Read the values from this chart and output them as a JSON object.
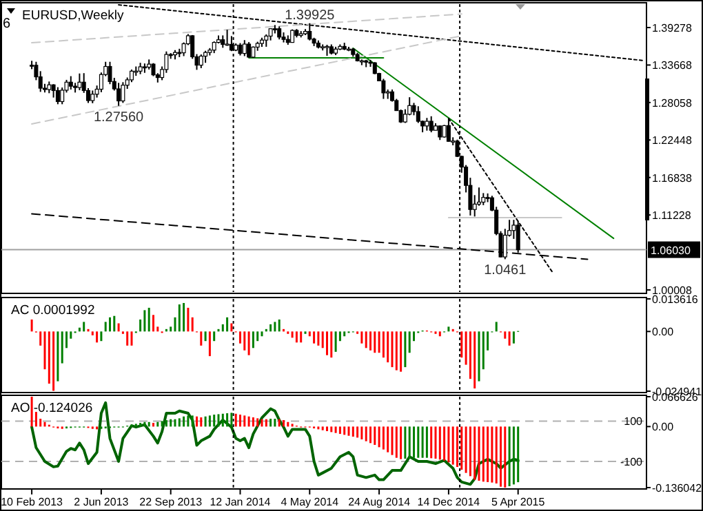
{
  "chart_data": [
    {
      "type": "candlestick",
      "title": "EURUSD,Weekly",
      "annotations": [
        "6",
        {
          "text": "1.39925",
          "x": "2014-05-04",
          "y": 1.39925
        },
        {
          "text": "1.27560",
          "x": "2013-06-30",
          "y": 1.2756
        },
        {
          "text": "1.0461",
          "x": "2015-03-15",
          "y": 1.0461
        }
      ],
      "color": "#000000",
      "tick_labels": "y",
      "xlim": [
        "2012-12-23",
        "2015-10-29"
      ],
      "ylim": [
        0.997,
        1.4278
      ],
      "yticks": [
        1.39278,
        1.33668,
        1.28058,
        1.22448,
        1.16838,
        1.11228,
        1.00008
      ],
      "x": [
        "2013-02-10",
        "2013-02-17",
        "2013-02-24",
        "2013-03-03",
        "2013-03-10",
        "2013-03-17",
        "2013-03-24",
        "2013-03-31",
        "2013-04-07",
        "2013-04-14",
        "2013-04-21",
        "2013-04-28",
        "2013-05-05",
        "2013-05-12",
        "2013-05-19",
        "2013-05-26",
        "2013-06-02",
        "2013-06-09",
        "2013-06-16",
        "2013-06-23",
        "2013-06-30",
        "2013-07-07",
        "2013-07-14",
        "2013-07-21",
        "2013-07-28",
        "2013-08-04",
        "2013-08-11",
        "2013-08-18",
        "2013-08-25",
        "2013-09-01",
        "2013-09-08",
        "2013-09-15",
        "2013-09-22",
        "2013-09-29",
        "2013-10-06",
        "2013-10-13",
        "2013-10-20",
        "2013-10-27",
        "2013-11-03",
        "2013-11-10",
        "2013-11-17",
        "2013-11-24",
        "2013-12-01",
        "2013-12-08",
        "2013-12-15",
        "2013-12-22",
        "2013-12-29",
        "2014-01-05",
        "2014-01-12",
        "2014-01-19",
        "2014-01-26",
        "2014-02-02",
        "2014-02-09",
        "2014-02-16",
        "2014-02-23",
        "2014-03-02",
        "2014-03-09",
        "2014-03-16",
        "2014-03-23",
        "2014-03-30",
        "2014-04-06",
        "2014-04-13",
        "2014-04-20",
        "2014-04-27",
        "2014-05-04",
        "2014-05-11",
        "2014-05-18",
        "2014-05-25",
        "2014-06-01",
        "2014-06-08",
        "2014-06-15",
        "2014-06-22",
        "2014-06-29",
        "2014-07-06",
        "2014-07-13",
        "2014-07-20",
        "2014-07-27",
        "2014-08-03",
        "2014-08-10",
        "2014-08-17",
        "2014-08-24",
        "2014-08-31",
        "2014-09-07",
        "2014-09-14",
        "2014-09-21",
        "2014-09-28",
        "2014-10-05",
        "2014-10-12",
        "2014-10-19",
        "2014-10-26",
        "2014-11-02",
        "2014-11-09",
        "2014-11-16",
        "2014-11-23",
        "2014-11-30",
        "2014-12-07",
        "2014-12-14",
        "2014-12-21",
        "2014-12-28",
        "2015-01-04",
        "2015-01-11",
        "2015-01-18",
        "2015-01-25",
        "2015-02-01",
        "2015-02-08",
        "2015-02-15",
        "2015-02-22",
        "2015-03-01",
        "2015-03-08",
        "2015-03-15",
        "2015-03-22",
        "2015-03-29",
        "2015-04-05"
      ],
      "ohlc": [
        [
          1.3365,
          1.343,
          1.3305,
          1.3363
        ],
        [
          1.3363,
          1.3415,
          1.314,
          1.319
        ],
        [
          1.319,
          1.3275,
          1.2965,
          1.302
        ],
        [
          1.302,
          1.3085,
          1.2955,
          1.3
        ],
        [
          1.3,
          1.312,
          1.2945,
          1.307
        ],
        [
          1.307,
          1.308,
          1.288,
          1.2985
        ],
        [
          1.2985,
          1.3035,
          1.278,
          1.282
        ],
        [
          1.282,
          1.303,
          1.278,
          1.299
        ],
        [
          1.299,
          1.3145,
          1.2955,
          1.311
        ],
        [
          1.311,
          1.32,
          1.3,
          1.305
        ],
        [
          1.305,
          1.31,
          1.2955,
          1.303
        ],
        [
          1.303,
          1.324,
          1.299,
          1.311
        ],
        [
          1.311,
          1.3245,
          1.295,
          1.2985
        ],
        [
          1.2985,
          1.302,
          1.28,
          1.2835
        ],
        [
          1.2835,
          1.2985,
          1.2795,
          1.293
        ],
        [
          1.293,
          1.306,
          1.288,
          1.3005
        ],
        [
          1.3005,
          1.3255,
          1.296,
          1.3225
        ],
        [
          1.3225,
          1.3415,
          1.32,
          1.3345
        ],
        [
          1.3345,
          1.3415,
          1.308,
          1.312
        ],
        [
          1.312,
          1.3175,
          1.2985,
          1.301
        ],
        [
          1.301,
          1.31,
          1.2756,
          1.283
        ],
        [
          1.283,
          1.311,
          1.28,
          1.3065
        ],
        [
          1.3065,
          1.318,
          1.301,
          1.3145
        ],
        [
          1.3145,
          1.33,
          1.311,
          1.3275
        ],
        [
          1.3275,
          1.3345,
          1.3205,
          1.3275
        ],
        [
          1.3275,
          1.34,
          1.323,
          1.334
        ],
        [
          1.334,
          1.339,
          1.325,
          1.3335
        ],
        [
          1.3335,
          1.345,
          1.33,
          1.338
        ],
        [
          1.338,
          1.3395,
          1.32,
          1.322
        ],
        [
          1.322,
          1.3245,
          1.3105,
          1.318
        ],
        [
          1.318,
          1.3345,
          1.314,
          1.33
        ],
        [
          1.33,
          1.357,
          1.325,
          1.3525
        ],
        [
          1.3525,
          1.3545,
          1.346,
          1.352
        ],
        [
          1.352,
          1.359,
          1.345,
          1.3555
        ],
        [
          1.3555,
          1.361,
          1.3485,
          1.355
        ],
        [
          1.355,
          1.3705,
          1.35,
          1.3685
        ],
        [
          1.3685,
          1.383,
          1.3665,
          1.3805
        ],
        [
          1.3805,
          1.3815,
          1.346,
          1.349
        ],
        [
          1.349,
          1.353,
          1.3295,
          1.3365
        ],
        [
          1.3365,
          1.3525,
          1.332,
          1.35
        ],
        [
          1.35,
          1.358,
          1.34,
          1.3555
        ],
        [
          1.3555,
          1.362,
          1.351,
          1.359
        ],
        [
          1.359,
          1.372,
          1.3545,
          1.3705
        ],
        [
          1.3705,
          1.381,
          1.369,
          1.3745
        ],
        [
          1.3745,
          1.381,
          1.3625,
          1.3675
        ],
        [
          1.3675,
          1.3895,
          1.3655,
          1.368
        ],
        [
          1.3675,
          1.38,
          1.3575,
          1.359
        ],
        [
          1.359,
          1.369,
          1.3575,
          1.3665
        ],
        [
          1.3665,
          1.3695,
          1.351,
          1.354
        ],
        [
          1.354,
          1.374,
          1.35,
          1.368
        ],
        [
          1.368,
          1.371,
          1.3475,
          1.3485
        ],
        [
          1.3485,
          1.3645,
          1.3475,
          1.3635
        ],
        [
          1.3635,
          1.3715,
          1.358,
          1.369
        ],
        [
          1.369,
          1.3775,
          1.364,
          1.374
        ],
        [
          1.374,
          1.3825,
          1.364,
          1.38
        ],
        [
          1.38,
          1.3915,
          1.3735,
          1.391
        ],
        [
          1.391,
          1.3965,
          1.384,
          1.3905
        ],
        [
          1.391,
          1.3945,
          1.375,
          1.3785
        ],
        [
          1.3785,
          1.3855,
          1.3705,
          1.375
        ],
        [
          1.375,
          1.381,
          1.367,
          1.3705
        ],
        [
          1.3705,
          1.39,
          1.37,
          1.3885
        ],
        [
          1.3885,
          1.3905,
          1.378,
          1.381
        ],
        [
          1.381,
          1.3875,
          1.378,
          1.3835
        ],
        [
          1.3835,
          1.3905,
          1.3815,
          1.387
        ],
        [
          1.387,
          1.39925,
          1.3735,
          1.3755
        ],
        [
          1.3755,
          1.3775,
          1.365,
          1.3695
        ],
        [
          1.3695,
          1.3735,
          1.3615,
          1.3635
        ],
        [
          1.3635,
          1.3675,
          1.3585,
          1.364
        ],
        [
          1.364,
          1.367,
          1.3505,
          1.3645
        ],
        [
          1.364,
          1.3675,
          1.3525,
          1.3545
        ],
        [
          1.3545,
          1.364,
          1.3515,
          1.3605
        ],
        [
          1.3605,
          1.3675,
          1.359,
          1.3645
        ],
        [
          1.3645,
          1.37,
          1.359,
          1.3605
        ],
        [
          1.3605,
          1.364,
          1.3575,
          1.3605
        ],
        [
          1.3605,
          1.362,
          1.349,
          1.3525
        ],
        [
          1.3525,
          1.355,
          1.342,
          1.343
        ],
        [
          1.343,
          1.345,
          1.3365,
          1.343
        ],
        [
          1.343,
          1.3445,
          1.3335,
          1.341
        ],
        [
          1.341,
          1.3445,
          1.334,
          1.34
        ],
        [
          1.34,
          1.341,
          1.323,
          1.324
        ],
        [
          1.324,
          1.325,
          1.313,
          1.313
        ],
        [
          1.313,
          1.316,
          1.286,
          1.295
        ],
        [
          1.295,
          1.3,
          1.286,
          1.2965
        ],
        [
          1.2965,
          1.3,
          1.282,
          1.2835
        ],
        [
          1.2835,
          1.286,
          1.268,
          1.2685
        ],
        [
          1.2685,
          1.27,
          1.25,
          1.2515
        ],
        [
          1.2515,
          1.2705,
          1.25,
          1.263
        ],
        [
          1.263,
          1.2885,
          1.2615,
          1.276
        ],
        [
          1.276,
          1.28,
          1.2615,
          1.267
        ],
        [
          1.267,
          1.275,
          1.25,
          1.2525
        ],
        [
          1.2525,
          1.2535,
          1.236,
          1.2455
        ],
        [
          1.2455,
          1.2575,
          1.2385,
          1.2525
        ],
        [
          1.2525,
          1.26,
          1.236,
          1.239
        ],
        [
          1.239,
          1.2495,
          1.239,
          1.2455
        ],
        [
          1.2455,
          1.246,
          1.2245,
          1.229
        ],
        [
          1.229,
          1.247,
          1.228,
          1.246
        ],
        [
          1.246,
          1.257,
          1.222,
          1.2225
        ],
        [
          1.2225,
          1.2285,
          1.2165,
          1.223
        ],
        [
          1.223,
          1.225,
          1.199,
          1.2
        ],
        [
          1.2,
          1.201,
          1.1755,
          1.184
        ],
        [
          1.184,
          1.187,
          1.146,
          1.1565
        ],
        [
          1.1565,
          1.168,
          1.1115,
          1.1205
        ],
        [
          1.1205,
          1.142,
          1.11,
          1.1285
        ],
        [
          1.1285,
          1.1535,
          1.126,
          1.1315
        ],
        [
          1.1315,
          1.145,
          1.127,
          1.1385
        ],
        [
          1.1385,
          1.1445,
          1.1315,
          1.138
        ],
        [
          1.138,
          1.141,
          1.118,
          1.1195
        ],
        [
          1.1195,
          1.1245,
          1.082,
          1.0845
        ],
        [
          1.0845,
          1.088,
          1.049,
          1.0495
        ],
        [
          1.0495,
          1.0915,
          1.0461,
          1.082
        ],
        [
          1.082,
          1.105,
          1.08,
          1.089
        ],
        [
          1.089,
          1.105,
          1.0765,
          1.097
        ],
        [
          1.097,
          1.1035,
          1.056,
          1.0603
        ]
      ],
      "series": [
        {
          "type": "line",
          "color": "#000000",
          "line_style": "dashed",
          "x": [
            "2013-02-10",
            "2015-07-26"
          ],
          "values": [
            1.114,
            1.046
          ]
        },
        {
          "type": "line",
          "color": "#000000",
          "line_style": "dotted",
          "x": [
            "2013-06-30",
            "2015-10-25"
          ],
          "values": [
            1.4268,
            1.3433
          ]
        },
        {
          "type": "line",
          "color": "#008000",
          "x": [
            "2014-07-13",
            "2015-09-06"
          ],
          "values": [
            1.3619,
            1.0773
          ]
        },
        {
          "type": "line",
          "color": "#008000",
          "x": [
            "2014-01-26",
            "2014-08-31"
          ],
          "values": [
            1.3474,
            1.3474
          ]
        },
        {
          "type": "line",
          "color": "#000000",
          "line_style": "dotted",
          "x": [
            "2014-12-14",
            "2015-05-31"
          ],
          "values": [
            1.2567,
            1.0258
          ]
        },
        {
          "type": "line",
          "color": "#c8c8c8",
          "line_style": "dashed",
          "x": [
            "2013-02-10",
            "2015-01-04"
          ],
          "values": [
            1.37,
            1.413
          ]
        },
        {
          "type": "line",
          "color": "#c8c8c8",
          "line_style": "dashed",
          "x": [
            "2013-02-10",
            "2015-01-04"
          ],
          "values": [
            1.2485,
            1.3804
          ]
        },
        {
          "type": "line",
          "color": "#c8c8c8",
          "x": [
            "2014-12-14",
            "2015-06-14"
          ],
          "values": [
            1.1083,
            1.1083
          ]
        }
      ],
      "ref_lines": [
        {
          "axis": "y",
          "value": 1.0603,
          "label": "1.06030",
          "color": "#a0a0a0"
        },
        {
          "axis": "x",
          "value": "2014-01-01",
          "line_style": "dotted",
          "color": "#000000"
        },
        {
          "axis": "x",
          "value": "2015-01-01",
          "line_style": "dotted",
          "color": "#000000"
        }
      ]
    },
    {
      "type": "bar",
      "title": "AC 0.0001992",
      "tick_labels": "y",
      "xlim": [
        "2012-12-23",
        "2015-10-29"
      ],
      "ylim": [
        -0.024941,
        0.013616
      ],
      "yticks": [
        0.013616,
        {
          "value": 0,
          "label": "0.00"
        },
        -0.024941
      ],
      "x": [
        "2013-02-10",
        "2013-02-17",
        "2013-02-24",
        "2013-03-03",
        "2013-03-10",
        "2013-03-17",
        "2013-03-24",
        "2013-03-31",
        "2013-04-07",
        "2013-04-14",
        "2013-04-21",
        "2013-04-28",
        "2013-05-05",
        "2013-05-12",
        "2013-05-19",
        "2013-05-26",
        "2013-06-02",
        "2013-06-09",
        "2013-06-16",
        "2013-06-23",
        "2013-06-30",
        "2013-07-07",
        "2013-07-14",
        "2013-07-21",
        "2013-07-28",
        "2013-08-04",
        "2013-08-11",
        "2013-08-18",
        "2013-08-25",
        "2013-09-01",
        "2013-09-08",
        "2013-09-15",
        "2013-09-22",
        "2013-09-29",
        "2013-10-06",
        "2013-10-13",
        "2013-10-20",
        "2013-10-27",
        "2013-11-03",
        "2013-11-10",
        "2013-11-17",
        "2013-11-24",
        "2013-12-01",
        "2013-12-08",
        "2013-12-15",
        "2013-12-22",
        "2013-12-29",
        "2014-01-05",
        "2014-01-12",
        "2014-01-19",
        "2014-01-26",
        "2014-02-02",
        "2014-02-09",
        "2014-02-16",
        "2014-02-23",
        "2014-03-02",
        "2014-03-09",
        "2014-03-16",
        "2014-03-23",
        "2014-03-30",
        "2014-04-06",
        "2014-04-13",
        "2014-04-20",
        "2014-04-27",
        "2014-05-04",
        "2014-05-11",
        "2014-05-18",
        "2014-05-25",
        "2014-06-01",
        "2014-06-08",
        "2014-06-15",
        "2014-06-22",
        "2014-06-29",
        "2014-07-06",
        "2014-07-13",
        "2014-07-20",
        "2014-07-27",
        "2014-08-03",
        "2014-08-10",
        "2014-08-17",
        "2014-08-24",
        "2014-08-31",
        "2014-09-07",
        "2014-09-14",
        "2014-09-21",
        "2014-09-28",
        "2014-10-05",
        "2014-10-12",
        "2014-10-19",
        "2014-10-26",
        "2014-11-02",
        "2014-11-09",
        "2014-11-16",
        "2014-11-23",
        "2014-11-30",
        "2014-12-07",
        "2014-12-14",
        "2014-12-21",
        "2014-12-28",
        "2015-01-04",
        "2015-01-11",
        "2015-01-18",
        "2015-01-25",
        "2015-02-01",
        "2015-02-08",
        "2015-02-15",
        "2015-02-22",
        "2015-03-01",
        "2015-03-08",
        "2015-03-15",
        "2015-03-22",
        "2015-03-29",
        "2015-04-05"
      ],
      "values": [
        0.005,
        -0.0004,
        -0.0059,
        -0.0158,
        -0.0218,
        -0.0248,
        -0.0208,
        -0.0133,
        -0.0069,
        -0.003,
        -0.0006,
        0.0016,
        0.004,
        0.001,
        -0.0016,
        -0.0046,
        -0.004,
        0.004,
        0.0059,
        0.0065,
        0.0034,
        -0.001,
        -0.0059,
        -0.0059,
        -0.0006,
        0.005,
        0.0089,
        0.0099,
        0.0069,
        0.002,
        -0.0006,
        0.001,
        0.002,
        0.0059,
        0.0113,
        0.0119,
        0.0099,
        0.0059,
        0.0,
        -0.0059,
        -0.004,
        -0.0103,
        -0.004,
        0.001,
        0.003,
        0.0059,
        0.0034,
        0.0,
        -0.005,
        -0.0079,
        -0.0099,
        -0.0069,
        -0.004,
        -0.002,
        0.001,
        0.003,
        0.004,
        0.005,
        0.001,
        -0.001,
        -0.0026,
        -0.0046,
        -0.0046,
        -0.001,
        -0.002,
        -0.005,
        -0.0059,
        -0.0069,
        -0.0099,
        -0.0109,
        -0.0085,
        -0.004,
        -0.002,
        -0.0006,
        0.0,
        -0.001,
        -0.005,
        -0.0069,
        -0.0079,
        -0.0089,
        -0.0089,
        -0.0109,
        -0.0129,
        -0.0149,
        -0.0162,
        -0.0168,
        -0.0149,
        -0.0089,
        -0.004,
        -0.0006,
        0.0004,
        0.0004,
        0.0,
        -0.001,
        -0.002,
        0.0,
        0.002,
        0.001,
        0.0,
        -0.0109,
        -0.0139,
        -0.0198,
        -0.0238,
        -0.0208,
        -0.0158,
        -0.0079,
        0.0,
        0.004,
        0.0,
        -0.003,
        -0.0059,
        -0.005,
        0.0002
      ],
      "colors": [
        "#ff0000",
        "#ff0000",
        "#ff0000",
        "#ff0000",
        "#ff0000",
        "#ff0000",
        "#008000",
        "#008000",
        "#008000",
        "#008000",
        "#008000",
        "#008000",
        "#008000",
        "#ff0000",
        "#ff0000",
        "#ff0000",
        "#008000",
        "#008000",
        "#008000",
        "#008000",
        "#ff0000",
        "#ff0000",
        "#ff0000",
        "#ff0000",
        "#008000",
        "#008000",
        "#008000",
        "#008000",
        "#ff0000",
        "#ff0000",
        "#ff0000",
        "#008000",
        "#008000",
        "#008000",
        "#008000",
        "#008000",
        "#ff0000",
        "#ff0000",
        "#ff0000",
        "#ff0000",
        "#008000",
        "#ff0000",
        "#008000",
        "#008000",
        "#008000",
        "#008000",
        "#ff0000",
        "#ff0000",
        "#ff0000",
        "#ff0000",
        "#ff0000",
        "#008000",
        "#008000",
        "#008000",
        "#008000",
        "#008000",
        "#008000",
        "#008000",
        "#ff0000",
        "#ff0000",
        "#ff0000",
        "#ff0000",
        "#ff0000",
        "#008000",
        "#ff0000",
        "#ff0000",
        "#ff0000",
        "#ff0000",
        "#ff0000",
        "#ff0000",
        "#008000",
        "#008000",
        "#008000",
        "#008000",
        "#008000",
        "#ff0000",
        "#ff0000",
        "#ff0000",
        "#ff0000",
        "#ff0000",
        "#ff0000",
        "#ff0000",
        "#ff0000",
        "#ff0000",
        "#ff0000",
        "#ff0000",
        "#008000",
        "#008000",
        "#008000",
        "#008000",
        "#008000",
        "#ff0000",
        "#ff0000",
        "#ff0000",
        "#ff0000",
        "#008000",
        "#008000",
        "#ff0000",
        "#ff0000",
        "#ff0000",
        "#ff0000",
        "#ff0000",
        "#ff0000",
        "#008000",
        "#008000",
        "#008000",
        "#008000",
        "#008000",
        "#ff0000",
        "#ff0000",
        "#ff0000",
        "#008000",
        "#008000"
      ],
      "ref_lines": [
        {
          "axis": "x",
          "value": "2014-01-01",
          "line_style": "dotted",
          "color": "#000000"
        },
        {
          "axis": "x",
          "value": "2015-01-01",
          "line_style": "dotted",
          "color": "#000000"
        }
      ]
    },
    {
      "type": "bar",
      "title": "AO -0.124026",
      "xlim": [
        "2012-12-23",
        "2015-10-29"
      ],
      "ylim": [
        -0.136042,
        0.066626
      ],
      "yticks": [
        0.066626,
        {
          "value": 0,
          "label": "0.00"
        },
        -0.136042
      ],
      "y2lim": [
        -230,
        221
      ],
      "y2ticks": [
        100,
        -100
      ],
      "xticks": [
        {
          "value": "2013-02-10",
          "label": "10 Feb 2013"
        },
        {
          "value": "2013-06-02",
          "label": "2 Jun 2013"
        },
        {
          "value": "2013-09-22",
          "label": "22 Sep 2013"
        },
        {
          "value": "2014-01-12",
          "label": "12 Jan 2014"
        },
        {
          "value": "2014-05-04",
          "label": "4 May 2014"
        },
        {
          "value": "2014-08-24",
          "label": "24 Aug 2014"
        },
        {
          "value": "2014-12-14",
          "label": "14 Dec 2014"
        },
        {
          "value": "2015-04-05",
          "label": "5 Apr 2015"
        }
      ],
      "series": [
        {
          "type": "bar",
          "x": [
            "2013-02-10",
            "2013-02-17",
            "2013-02-24",
            "2013-03-03",
            "2013-03-10",
            "2013-03-17",
            "2013-03-24",
            "2013-03-31",
            "2013-04-07",
            "2013-04-14",
            "2013-04-21",
            "2013-04-28",
            "2013-05-05",
            "2013-05-12",
            "2013-05-19",
            "2013-05-26",
            "2013-06-02",
            "2013-06-09",
            "2013-06-16",
            "2013-06-23",
            "2013-06-30",
            "2013-07-07",
            "2013-07-14",
            "2013-07-21",
            "2013-07-28",
            "2013-08-04",
            "2013-08-11",
            "2013-08-18",
            "2013-08-25",
            "2013-09-01",
            "2013-09-08",
            "2013-09-15",
            "2013-09-22",
            "2013-09-29",
            "2013-10-06",
            "2013-10-13",
            "2013-10-20",
            "2013-10-27",
            "2013-11-03",
            "2013-11-10",
            "2013-11-17",
            "2013-11-24",
            "2013-12-01",
            "2013-12-08",
            "2013-12-15",
            "2013-12-22",
            "2013-12-29",
            "2014-01-05",
            "2014-01-12",
            "2014-01-19",
            "2014-01-26",
            "2014-02-02",
            "2014-02-09",
            "2014-02-16",
            "2014-02-23",
            "2014-03-02",
            "2014-03-09",
            "2014-03-16",
            "2014-03-23",
            "2014-03-30",
            "2014-04-06",
            "2014-04-13",
            "2014-04-20",
            "2014-04-27",
            "2014-05-04",
            "2014-05-11",
            "2014-05-18",
            "2014-05-25",
            "2014-06-01",
            "2014-06-08",
            "2014-06-15",
            "2014-06-22",
            "2014-06-29",
            "2014-07-06",
            "2014-07-13",
            "2014-07-20",
            "2014-07-27",
            "2014-08-03",
            "2014-08-10",
            "2014-08-17",
            "2014-08-24",
            "2014-08-31",
            "2014-09-07",
            "2014-09-14",
            "2014-09-21",
            "2014-09-28",
            "2014-10-05",
            "2014-10-12",
            "2014-10-19",
            "2014-10-26",
            "2014-11-02",
            "2014-11-09",
            "2014-11-16",
            "2014-11-23",
            "2014-11-30",
            "2014-12-07",
            "2014-12-14",
            "2014-12-21",
            "2014-12-28",
            "2015-01-04",
            "2015-01-11",
            "2015-01-18",
            "2015-01-25",
            "2015-02-01",
            "2015-02-08",
            "2015-02-15",
            "2015-02-22",
            "2015-03-01",
            "2015-03-08",
            "2015-03-15",
            "2015-03-22",
            "2015-03-29",
            "2015-04-05"
          ],
          "values": [
            0.0666,
            0.0327,
            0.0174,
            0.0102,
            0.0041,
            -0.002,
            -0.0041,
            -0.0051,
            -0.0041,
            -0.0031,
            -0.002,
            -0.002,
            -0.002,
            -0.0031,
            -0.0051,
            -0.0061,
            -0.0051,
            -0.0041,
            -0.0031,
            -0.002,
            -0.002,
            0.0,
            0.002,
            0.0041,
            0.0061,
            0.0082,
            0.0102,
            0.0102,
            0.0082,
            0.0102,
            0.0123,
            0.0143,
            0.0164,
            0.0164,
            0.0184,
            0.0225,
            0.0246,
            0.0246,
            0.0225,
            0.0205,
            0.0225,
            0.0246,
            0.0266,
            0.0276,
            0.0286,
            0.0297,
            0.0307,
            0.0286,
            0.0266,
            0.0246,
            0.0225,
            0.0205,
            0.0184,
            0.0164,
            0.0164,
            0.0174,
            0.0174,
            0.0164,
            0.0143,
            0.0102,
            0.0061,
            0.002,
            0.0,
            0.0,
            -0.002,
            -0.0041,
            -0.0061,
            -0.0082,
            -0.0102,
            -0.0123,
            -0.0143,
            -0.0164,
            -0.0184,
            -0.0205,
            -0.0225,
            -0.0246,
            -0.0286,
            -0.0327,
            -0.0368,
            -0.0409,
            -0.046,
            -0.0511,
            -0.0573,
            -0.0634,
            -0.0696,
            -0.0726,
            -0.0716,
            -0.0706,
            -0.0696,
            -0.0696,
            -0.0696,
            -0.0696,
            -0.0706,
            -0.0716,
            -0.0737,
            -0.0757,
            -0.0798,
            -0.0849,
            -0.09,
            -0.0962,
            -0.1033,
            -0.1105,
            -0.1187,
            -0.1208,
            -0.1228,
            -0.1238,
            -0.1248,
            -0.1269,
            -0.134,
            -0.136,
            -0.133,
            -0.129,
            -0.124
          ],
          "colors": [
            "#ff0000",
            "#ff0000",
            "#ff0000",
            "#ff0000",
            "#ff0000",
            "#ff0000",
            "#ff0000",
            "#ff0000",
            "#008000",
            "#008000",
            "#008000",
            "#008000",
            "#008000",
            "#ff0000",
            "#ff0000",
            "#ff0000",
            "#008000",
            "#008000",
            "#008000",
            "#008000",
            "#008000",
            "#008000",
            "#008000",
            "#008000",
            "#008000",
            "#008000",
            "#008000",
            "#008000",
            "#ff0000",
            "#008000",
            "#008000",
            "#008000",
            "#008000",
            "#008000",
            "#008000",
            "#008000",
            "#008000",
            "#008000",
            "#ff0000",
            "#ff0000",
            "#008000",
            "#008000",
            "#008000",
            "#008000",
            "#008000",
            "#008000",
            "#008000",
            "#ff0000",
            "#ff0000",
            "#ff0000",
            "#ff0000",
            "#ff0000",
            "#ff0000",
            "#ff0000",
            "#ff0000",
            "#008000",
            "#008000",
            "#ff0000",
            "#ff0000",
            "#ff0000",
            "#ff0000",
            "#ff0000",
            "#ff0000",
            "#ff0000",
            "#ff0000",
            "#ff0000",
            "#ff0000",
            "#ff0000",
            "#ff0000",
            "#ff0000",
            "#ff0000",
            "#ff0000",
            "#ff0000",
            "#ff0000",
            "#ff0000",
            "#ff0000",
            "#ff0000",
            "#ff0000",
            "#ff0000",
            "#ff0000",
            "#ff0000",
            "#ff0000",
            "#ff0000",
            "#ff0000",
            "#ff0000",
            "#ff0000",
            "#008000",
            "#008000",
            "#008000",
            "#008000",
            "#008000",
            "#008000",
            "#ff0000",
            "#ff0000",
            "#ff0000",
            "#ff0000",
            "#ff0000",
            "#ff0000",
            "#ff0000",
            "#ff0000",
            "#ff0000",
            "#ff0000",
            "#ff0000",
            "#ff0000",
            "#ff0000",
            "#ff0000",
            "#ff0000",
            "#ff0000",
            "#ff0000",
            "#ff0000",
            "#008000",
            "#008000",
            "#008000"
          ]
        },
        {
          "type": "line",
          "axis": "y2",
          "color": "#006400",
          "x": [
            "2013-02-10",
            "2013-02-17",
            "2013-03-03",
            "2013-03-17",
            "2013-03-24",
            "2013-04-07",
            "2013-04-14",
            "2013-04-21",
            "2013-04-28",
            "2013-05-05",
            "2013-05-12",
            "2013-05-26",
            "2013-06-02",
            "2013-06-09",
            "2013-06-16",
            "2013-06-30",
            "2013-07-07",
            "2013-07-21",
            "2013-07-28",
            "2013-08-11",
            "2013-08-25",
            "2013-09-01",
            "2013-09-08",
            "2013-09-15",
            "2013-09-29",
            "2013-10-06",
            "2013-10-20",
            "2013-10-27",
            "2013-11-03",
            "2013-11-10",
            "2013-11-24",
            "2013-12-01",
            "2013-12-15",
            "2013-12-29",
            "2014-01-05",
            "2014-01-12",
            "2014-01-19",
            "2014-01-26",
            "2014-02-02",
            "2014-02-16",
            "2014-03-02",
            "2014-03-09",
            "2014-03-16",
            "2014-03-23",
            "2014-03-30",
            "2014-04-06",
            "2014-04-27",
            "2014-05-04",
            "2014-05-11",
            "2014-05-18",
            "2014-05-25",
            "2014-06-08",
            "2014-06-22",
            "2014-07-06",
            "2014-07-13",
            "2014-07-20",
            "2014-08-03",
            "2014-08-17",
            "2014-08-24",
            "2014-08-31",
            "2014-09-14",
            "2014-09-28",
            "2014-10-12",
            "2014-10-26",
            "2014-11-09",
            "2014-11-23",
            "2014-12-07",
            "2014-12-21",
            "2014-12-28",
            "2015-01-04",
            "2015-01-18",
            "2015-01-25",
            "2015-02-01",
            "2015-02-15",
            "2015-03-01",
            "2015-03-08",
            "2015-03-22",
            "2015-03-29",
            "2015-04-05"
          ],
          "values": [
            70,
            -32,
            -100,
            -127,
            -123,
            -50,
            -36,
            -43,
            -9,
            -43,
            -111,
            -55,
            139,
            191,
            14,
            -100,
            14,
            77,
            70,
            82,
            25,
            -9,
            48,
            139,
            139,
            150,
            139,
            105,
            -20,
            2,
            25,
            59,
            105,
            70,
            14,
            2,
            14,
            -32,
            36,
            116,
            161,
            150,
            105,
            70,
            25,
            59,
            59,
            25,
            -100,
            -168,
            -157,
            -134,
            -77,
            -55,
            -77,
            -168,
            -180,
            -168,
            -191,
            -191,
            -145,
            -145,
            -77,
            -100,
            -100,
            -111,
            -95,
            -134,
            -180,
            -202,
            -214,
            -186,
            -111,
            -89,
            -111,
            -134,
            -100,
            -89,
            -95
          ]
        }
      ],
      "ref_lines": [
        {
          "axis": "y2",
          "value": 100,
          "line_style": "dashed",
          "color": "#b0b0b0"
        },
        {
          "axis": "y2",
          "value": -100,
          "line_style": "dashed",
          "color": "#b0b0b0"
        },
        {
          "axis": "x",
          "value": "2014-01-01",
          "line_style": "dotted",
          "color": "#000000"
        },
        {
          "axis": "x",
          "value": "2015-01-01",
          "line_style": "dotted",
          "color": "#000000"
        }
      ]
    }
  ]
}
